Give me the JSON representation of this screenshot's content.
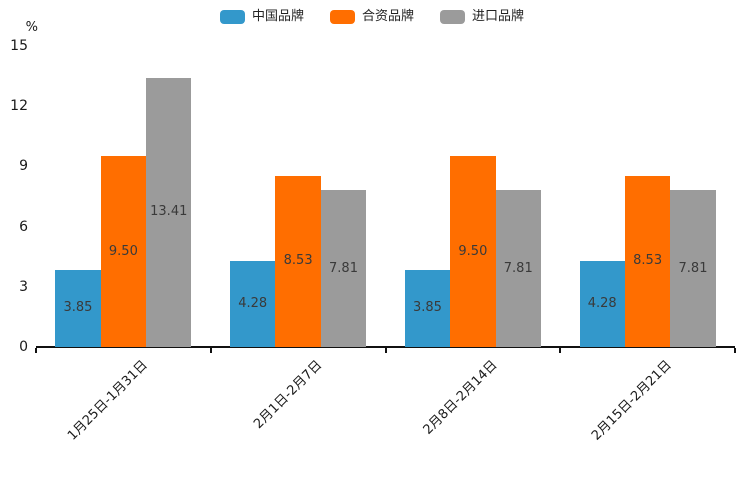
{
  "chart_data": {
    "type": "bar",
    "title": "",
    "ylabel": "%",
    "xlabel": "",
    "ylim": [
      0,
      15
    ],
    "yticks": [
      0,
      3,
      6,
      9,
      12,
      15
    ],
    "grid": false,
    "legend_position": "top",
    "categories": [
      "1月25日-1月31日",
      "2月1日-2月7日",
      "2月8日-2月14日",
      "2月15日-2月21日"
    ],
    "series": [
      {
        "name": "中国品牌",
        "color": "#3398CB",
        "values": [
          3.85,
          4.28,
          3.85,
          4.28
        ]
      },
      {
        "name": "合资品牌",
        "color": "#FF6E00",
        "values": [
          9.5,
          8.53,
          9.5,
          8.53
        ]
      },
      {
        "name": "进口品牌",
        "color": "#9B9B9B",
        "values": [
          13.41,
          7.81,
          7.81,
          7.81
        ]
      }
    ],
    "value_label_decimals": 2,
    "colors": {
      "axis": "#111111",
      "tick_text": "#1a1a1a",
      "value_label_text": "#3a3a3a",
      "background": "#ffffff"
    }
  }
}
